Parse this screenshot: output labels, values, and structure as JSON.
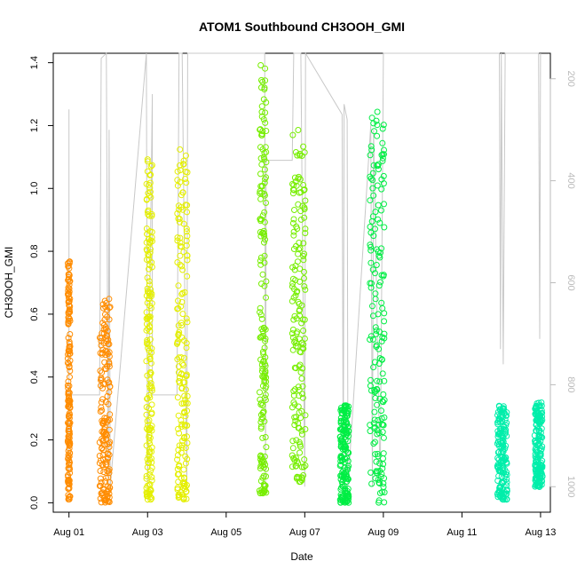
{
  "chart_data": {
    "type": "scatter",
    "title": "ATOM1 Southbound CH3OOH_GMI",
    "xlabel": "Date",
    "ylabel": "CH3OOH_GMI",
    "x_unit": "days after Aug 01",
    "xlim": [
      -0.4,
      12.25
    ],
    "ylim": [
      -0.03,
      1.43
    ],
    "y_ticks": [
      0.0,
      0.2,
      0.4,
      0.6,
      0.8,
      1.0,
      1.2,
      1.4
    ],
    "x_ticks": [
      {
        "value": 0,
        "label": "Aug 01"
      },
      {
        "value": 2,
        "label": "Aug 03"
      },
      {
        "value": 4,
        "label": "Aug 05"
      },
      {
        "value": 6,
        "label": "Aug 07"
      },
      {
        "value": 8,
        "label": "Aug 09"
      },
      {
        "value": 10,
        "label": "Aug 11"
      },
      {
        "value": 12,
        "label": "Aug 13"
      }
    ],
    "right_axis": {
      "quantity": "pressure",
      "reversed": true,
      "lim": [
        1050,
        150
      ],
      "ticks": [
        200,
        400,
        600,
        800,
        1000
      ],
      "color": "#bbbbbb"
    },
    "grid": false,
    "legend": "none",
    "series": [
      {
        "color": "#ff8c00",
        "clusters": [
          {
            "x": [
              -0.03,
              0.03
            ],
            "y": [
              0.01,
              0.77
            ]
          },
          {
            "x": [
              0.78,
              1.05
            ],
            "y": [
              0.0,
              0.65
            ]
          }
        ]
      },
      {
        "color": "#e4ef00",
        "clusters": [
          {
            "x": [
              1.97,
              2.12
            ],
            "y": [
              0.01,
              1.13
            ]
          },
          {
            "x": [
              2.75,
              3.02
            ],
            "y": [
              0.01,
              1.13
            ]
          }
        ]
      },
      {
        "color": "#76ee00",
        "clusters": [
          {
            "x": [
              4.85,
              5.02
            ],
            "y": [
              0.03,
              1.4
            ]
          },
          {
            "x": [
              5.68,
              6.02
            ],
            "y": [
              0.06,
              1.19
            ]
          }
        ]
      },
      {
        "color": "#00ee44",
        "clusters": [
          {
            "x": [
              6.9,
              7.12
            ],
            "y": [
              0.0,
              0.31
            ]
          },
          {
            "x": [
              7.65,
              8.03
            ],
            "y": [
              0.0,
              1.25
            ]
          }
        ]
      },
      {
        "color": "#00eeaa",
        "clusters": [
          {
            "x": [
              10.9,
              11.15
            ],
            "y": [
              0.01,
              0.31
            ]
          },
          {
            "x": [
              11.85,
              12.05
            ],
            "y": [
              0.05,
              0.32
            ]
          }
        ]
      }
    ],
    "pressure_trace": {
      "color": "#c8c8c8",
      "points": [
        [
          0.0,
          260
        ],
        [
          0.0,
          1000
        ],
        [
          0.0,
          820
        ],
        [
          0.78,
          820
        ],
        [
          0.82,
          160
        ],
        [
          0.95,
          150
        ],
        [
          1.0,
          1000
        ],
        [
          1.02,
          300
        ],
        [
          1.05,
          1000
        ],
        [
          1.97,
          150
        ],
        [
          2.0,
          1000
        ],
        [
          2.12,
          230
        ],
        [
          2.12,
          820
        ],
        [
          2.75,
          820
        ],
        [
          2.8,
          150
        ],
        [
          2.88,
          150
        ],
        [
          3.0,
          1000
        ],
        [
          3.02,
          150
        ],
        [
          4.98,
          150
        ],
        [
          5.0,
          1000
        ],
        [
          5.02,
          360
        ],
        [
          5.68,
          360
        ],
        [
          5.72,
          150
        ],
        [
          5.9,
          150
        ],
        [
          6.0,
          1000
        ],
        [
          6.02,
          150
        ],
        [
          6.95,
          270
        ],
        [
          6.98,
          1000
        ],
        [
          7.0,
          250
        ],
        [
          7.08,
          280
        ],
        [
          7.1,
          1000
        ],
        [
          7.68,
          290
        ],
        [
          7.72,
          1000
        ],
        [
          7.75,
          300
        ],
        [
          7.92,
          1000
        ],
        [
          8.0,
          150
        ],
        [
          10.95,
          150
        ],
        [
          10.98,
          730
        ],
        [
          11.0,
          150
        ],
        [
          11.05,
          760
        ],
        [
          11.1,
          150
        ],
        [
          11.95,
          150
        ],
        [
          11.98,
          710
        ],
        [
          12.0,
          150
        ]
      ]
    }
  }
}
